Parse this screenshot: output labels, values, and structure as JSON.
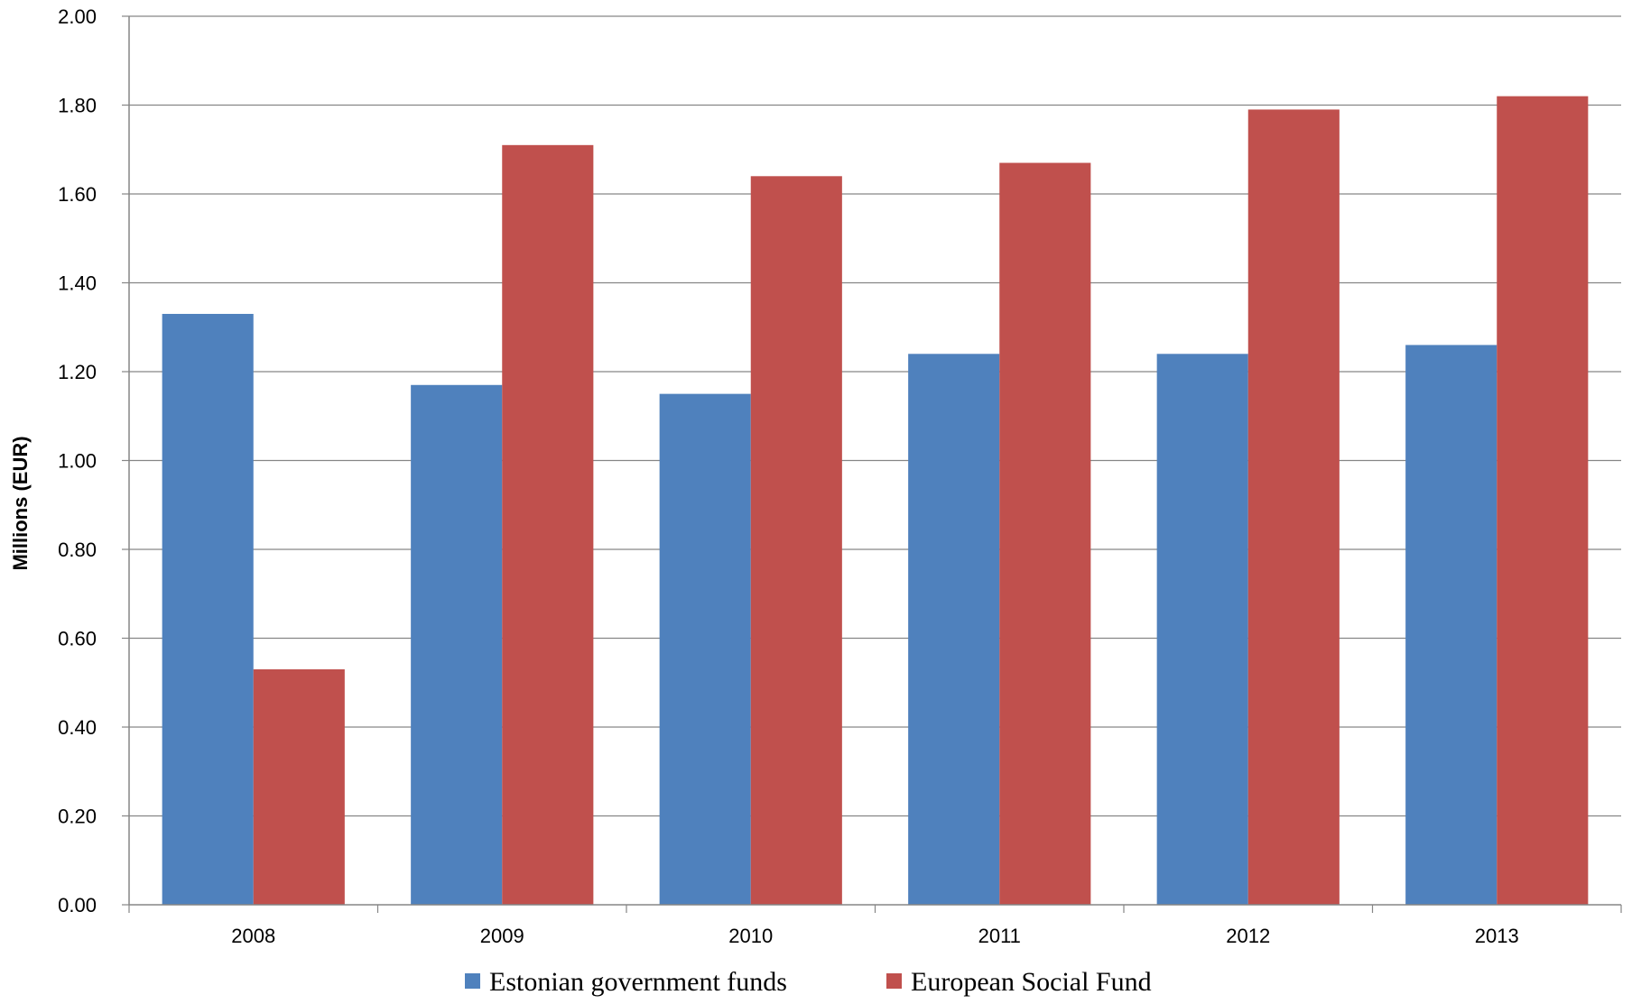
{
  "chart_data": {
    "type": "bar",
    "title": "",
    "xlabel": "",
    "ylabel": "Millions (EUR)",
    "ylim": [
      0,
      2.0
    ],
    "yticks": [
      "0.00",
      "0.20",
      "0.40",
      "0.60",
      "0.80",
      "1.00",
      "1.20",
      "1.40",
      "1.60",
      "1.80",
      "2.00"
    ],
    "grid": true,
    "legend_position": "bottom",
    "categories": [
      "2008",
      "2009",
      "2010",
      "2011",
      "2012",
      "2013"
    ],
    "series": [
      {
        "name": "Estonian government funds",
        "color": "#4F81BD",
        "values": [
          1.33,
          1.17,
          1.15,
          1.24,
          1.24,
          1.26
        ]
      },
      {
        "name": "European Social Fund",
        "color": "#C0504D",
        "values": [
          0.53,
          1.71,
          1.64,
          1.67,
          1.79,
          1.82
        ]
      }
    ]
  }
}
